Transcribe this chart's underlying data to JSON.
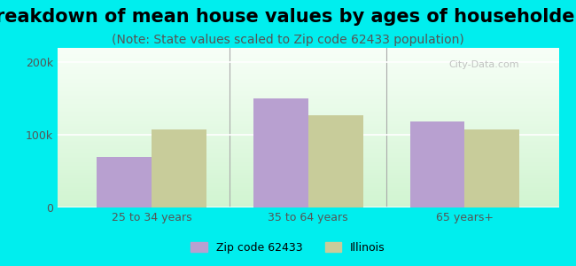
{
  "title": "Breakdown of mean house values by ages of householders",
  "subtitle": "(Note: State values scaled to Zip code 62433 population)",
  "categories": [
    "25 to 34 years",
    "35 to 64 years",
    "65 years+"
  ],
  "zip_values": [
    70000,
    150000,
    118000
  ],
  "il_values": [
    107000,
    127000,
    107000
  ],
  "ylim": [
    0,
    220000
  ],
  "ytick_labels": [
    "0",
    "100k",
    "200k"
  ],
  "ytick_vals": [
    0,
    100000,
    200000
  ],
  "zip_color": "#b8a0d0",
  "il_color": "#c8cc9a",
  "bg_color": "#00eeee",
  "legend_zip_label": "Zip code 62433",
  "legend_il_label": "Illinois",
  "bar_width": 0.35,
  "title_fontsize": 15,
  "subtitle_fontsize": 10
}
